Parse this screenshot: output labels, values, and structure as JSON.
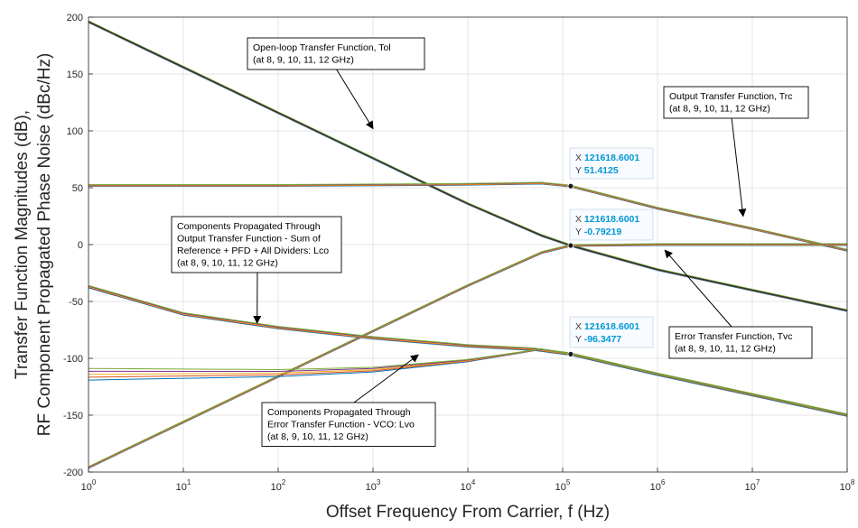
{
  "chart_data": {
    "type": "line",
    "xlabel": "Offset Frequency From Carrier, f (Hz)",
    "ylabel": [
      "Transfer Function Magnitudes (dB),",
      "RF Component Propagated Phase Noise (dBc/Hz)"
    ],
    "xscale": "log",
    "xlim": [
      1,
      100000000
    ],
    "ylim": [
      -200,
      200
    ],
    "grid": "on",
    "legend": "none",
    "x_ticks": [
      {
        "base": "10",
        "exp": "0"
      },
      {
        "base": "10",
        "exp": "1"
      },
      {
        "base": "10",
        "exp": "2"
      },
      {
        "base": "10",
        "exp": "3"
      },
      {
        "base": "10",
        "exp": "4"
      },
      {
        "base": "10",
        "exp": "5"
      },
      {
        "base": "10",
        "exp": "6"
      },
      {
        "base": "10",
        "exp": "7"
      },
      {
        "base": "10",
        "exp": "8"
      }
    ],
    "y_ticks": [
      "200",
      "150",
      "100",
      "50",
      "0",
      "-50",
      "-100",
      "-150",
      "-200"
    ],
    "carrier_frequencies_ghz": [
      8,
      9,
      10,
      11,
      12
    ],
    "series_colors": [
      "#0072bd",
      "#d95319",
      "#edb120",
      "#7e2f8e",
      "#77ac30"
    ],
    "curves": [
      {
        "name": "Tol",
        "x": [
          1,
          10,
          100,
          1000,
          10000,
          60000,
          121618.6,
          1000000,
          10000000,
          100000000
        ],
        "y": [
          196,
          156,
          116,
          76,
          36,
          8,
          -0.8,
          -22,
          -40,
          -58
        ]
      },
      {
        "name": "Trc",
        "x": [
          1,
          100,
          10000,
          60000,
          121618.6,
          1000000,
          10000000,
          100000000
        ],
        "y": [
          52,
          52,
          53,
          54,
          51.4,
          32,
          14,
          -5
        ]
      },
      {
        "name": "Tvc",
        "x": [
          1,
          10,
          100,
          1000,
          10000,
          60000,
          121618.6,
          1000000,
          10000000,
          100000000
        ],
        "y": [
          -196,
          -156,
          -116,
          -76,
          -36,
          -7,
          -0.8,
          0,
          0,
          0
        ]
      },
      {
        "name": "Lco",
        "x": [
          1,
          10,
          100,
          1000,
          10000,
          50000,
          121618.6,
          1000000,
          10000000,
          100000000
        ],
        "y": [
          -37,
          -61,
          -73,
          -82,
          -89,
          -92,
          -96.3,
          -114,
          -132,
          -150
        ]
      },
      {
        "name": "Lvo",
        "x": [
          1,
          100,
          1000,
          10000,
          60000,
          121618.6,
          1000000,
          10000000,
          100000000
        ],
        "y": [
          -114,
          -113,
          -110,
          -102,
          -92,
          -96.3,
          -114,
          -132,
          -150
        ]
      }
    ],
    "annotations": [
      {
        "lines": [
          "Open-loop Transfer Function, Tol",
          "(at 8, 9, 10, 11, 12 GHz)"
        ],
        "arrow_to": [
          1000,
          102
        ]
      },
      {
        "lines": [
          "Output Transfer Function, Trc",
          "(at 8, 9, 10, 11, 12 GHz)"
        ],
        "arrow_to": [
          8000000,
          25
        ]
      },
      {
        "lines": [
          "Components Propagated Through",
          "Output Transfer Function - Sum of",
          "Reference + PFD + All Dividers: Lco",
          "(at 8, 9, 10, 11, 12 GHz)"
        ],
        "arrow_to": [
          60,
          -69
        ]
      },
      {
        "lines": [
          "Error Transfer Function, Tvc",
          "(at 8, 9, 10, 11, 12 GHz)"
        ],
        "arrow_to": [
          1200000,
          -5
        ]
      },
      {
        "lines": [
          "Components Propagated Through",
          "Error Transfer Function - VCO: Lvo",
          "(at 8, 9, 10, 11, 12 GHz)"
        ],
        "arrow_to": [
          3000,
          -97
        ]
      }
    ],
    "datatips": [
      {
        "x_label": "X",
        "x_value": "121618.6001",
        "y_label": "Y",
        "y_value": "51.4125",
        "x": 121618.6001,
        "y": 51.4125
      },
      {
        "x_label": "X",
        "x_value": "121618.6001",
        "y_label": "Y",
        "y_value": "-0.79219",
        "x": 121618.6001,
        "y": -0.79219
      },
      {
        "x_label": "X",
        "x_value": "121618.6001",
        "y_label": "Y",
        "y_value": "-96.3477",
        "x": 121618.6001,
        "y": -96.3477
      }
    ]
  }
}
